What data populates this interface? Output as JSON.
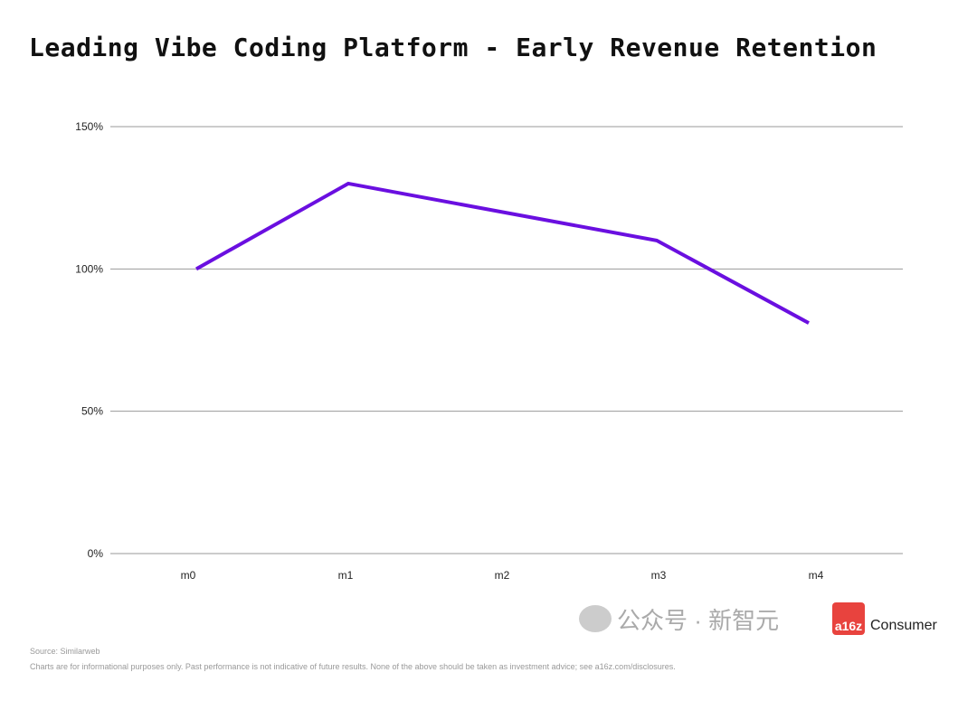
{
  "title": "Leading Vibe Coding Platform - Early Revenue Retention",
  "chart_data": {
    "type": "line",
    "title": "Leading Vibe Coding Platform - Early Revenue Retention",
    "categories": [
      "m0",
      "m1",
      "m2",
      "m3",
      "m4"
    ],
    "series": [
      {
        "values": [
          100,
          130,
          120,
          110,
          81
        ],
        "color": "#6a0fe0"
      }
    ],
    "ylim": [
      0,
      150
    ],
    "yticks": [
      0,
      50,
      100,
      150
    ],
    "ytick_labels": [
      "0%",
      "50%",
      "100%",
      "150%"
    ],
    "grid": "horizontal",
    "xlabel": "",
    "ylabel": ""
  },
  "footer": {
    "source": "Source: Similarweb",
    "disclaimer": "Charts are for informational purposes only. Past performance is not indicative of future results. None of the above should be taken as investment advice; see a16z.com/disclosures."
  },
  "watermark": {
    "text": "公众号 · 新智元",
    "logo": "a16z",
    "logo_label": "Consumer"
  }
}
